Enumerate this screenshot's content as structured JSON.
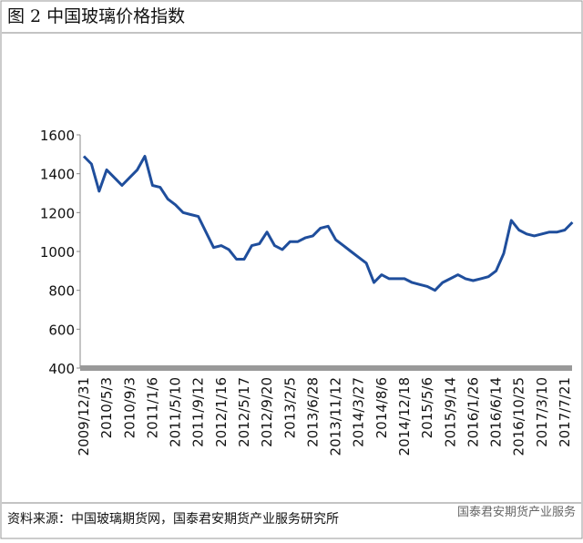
{
  "chart_data": {
    "type": "line",
    "title": "图 2 中国玻璃价格指数",
    "categories": [
      "2009/12/31",
      null,
      null,
      "2010/5/3",
      null,
      null,
      "2010/9/3",
      null,
      null,
      "2011/1/6",
      null,
      null,
      "2011/5/10",
      null,
      null,
      "2011/9/12",
      null,
      null,
      "2012/1/16",
      null,
      null,
      "2012/5/17",
      null,
      null,
      "2012/9/20",
      null,
      null,
      "2013/2/5",
      null,
      null,
      "2013/6/28",
      null,
      null,
      "2013/11/12",
      null,
      null,
      "2014/3/27",
      null,
      null,
      "2014/8/6",
      null,
      null,
      "2014/12/18",
      null,
      null,
      "2015/5/6",
      null,
      null,
      "2015/9/14",
      null,
      null,
      "2016/1/26",
      null,
      null,
      "2016/6/14",
      null,
      null,
      "2016/10/25",
      null,
      null,
      "2017/3/10",
      null,
      null,
      "2017/7/21",
      null
    ],
    "values": [
      1490,
      1450,
      1310,
      1420,
      1380,
      1340,
      1380,
      1420,
      1490,
      1340,
      1330,
      1270,
      1240,
      1200,
      1190,
      1180,
      1100,
      1020,
      1030,
      1010,
      960,
      960,
      1030,
      1040,
      1100,
      1030,
      1010,
      1050,
      1050,
      1070,
      1080,
      1120,
      1130,
      1060,
      1030,
      1000,
      970,
      940,
      840,
      880,
      860,
      860,
      860,
      840,
      830,
      820,
      800,
      840,
      860,
      880,
      860,
      850,
      860,
      870,
      900,
      990,
      1160,
      1110,
      1090,
      1080,
      1090,
      1100,
      1100,
      1110,
      1150
    ],
    "color": "#1f4e9c",
    "ylim": [
      400,
      1600
    ],
    "yticks": [
      400,
      600,
      800,
      1000,
      1200,
      1400,
      1600
    ],
    "source": "资料来源：中国玻璃期货网，国泰君安期货产业服务研究所",
    "watermark": "国泰君安期货产业服务"
  }
}
